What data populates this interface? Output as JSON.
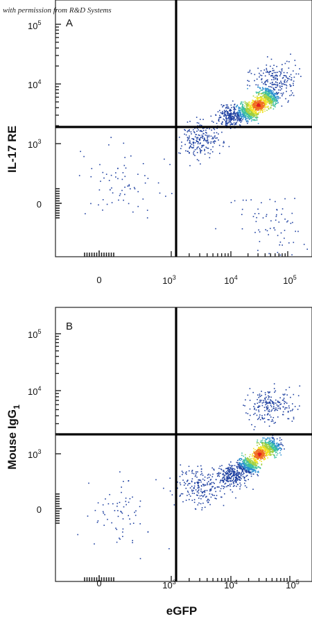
{
  "credit": "with permission from R&D Systems",
  "chart_data": [
    {
      "type": "scatter",
      "panel_label": "A",
      "xlabel": "eGFP",
      "ylabel": "IL-17 RE",
      "x_scale": "biexponential",
      "y_scale": "biexponential",
      "x_ticks": [
        "0",
        "10^3",
        "10^4",
        "10^5"
      ],
      "y_ticks": [
        "0",
        "10^3",
        "10^4",
        "10^5"
      ],
      "quadrant_gate": {
        "x": 1300,
        "y": 2100
      },
      "series": [
        {
          "values": [
            {
              "x": 30000,
              "y": 4500,
              "density": "peak"
            },
            {
              "x": 20000,
              "y": 3500,
              "density": "high"
            },
            {
              "x": 45000,
              "y": 6000,
              "density": "high"
            },
            {
              "x": 10000,
              "y": 3000,
              "density": "medium"
            },
            {
              "x": 60000,
              "y": 12000,
              "density": "low"
            },
            {
              "x": 3000,
              "y": 1200,
              "density": "low"
            },
            {
              "x": 300,
              "y": 400,
              "density": "sparse"
            },
            {
              "x": 50000,
              "y": -500,
              "density": "sparse"
            }
          ]
        }
      ],
      "colors": [
        "#1d3fa0",
        "#2a8fd0",
        "#3fc0a0",
        "#a0d040",
        "#f0e020",
        "#f07020",
        "#e02020"
      ],
      "grid": false
    },
    {
      "type": "scatter",
      "panel_label": "B",
      "xlabel": "eGFP",
      "ylabel": "Mouse IgG1",
      "x_scale": "biexponential",
      "y_scale": "biexponential",
      "x_ticks": [
        "0",
        "10^3",
        "10^4",
        "10^5"
      ],
      "y_ticks": [
        "0",
        "10^3",
        "10^4",
        "10^5"
      ],
      "quadrant_gate": {
        "x": 1300,
        "y": 2100
      },
      "series": [
        {
          "values": [
            {
              "x": 30000,
              "y": 1000,
              "density": "peak"
            },
            {
              "x": 20000,
              "y": 800,
              "density": "high"
            },
            {
              "x": 45000,
              "y": 1300,
              "density": "high"
            },
            {
              "x": 10000,
              "y": 600,
              "density": "medium"
            },
            {
              "x": 3000,
              "y": 400,
              "density": "low"
            },
            {
              "x": 50000,
              "y": 6000,
              "density": "low"
            },
            {
              "x": 300,
              "y": 0,
              "density": "sparse"
            }
          ]
        }
      ],
      "colors": [
        "#1d3fa0",
        "#2a8fd0",
        "#3fc0a0",
        "#a0d040",
        "#f0e020",
        "#f07020",
        "#e02020"
      ],
      "grid": false
    }
  ]
}
